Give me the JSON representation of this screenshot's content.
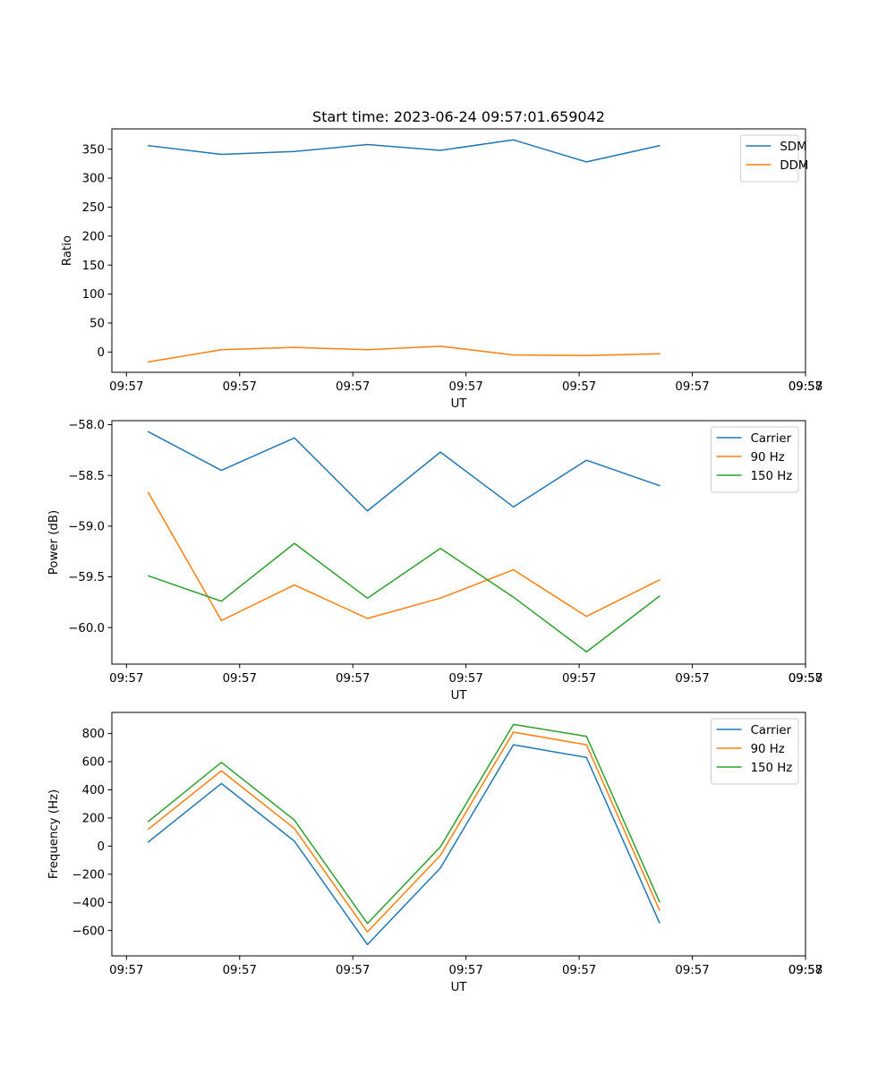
{
  "chart_data": [
    {
      "type": "line",
      "title": "Start time: 2023-06-24 09:57:01.659042",
      "xlabel": "UT",
      "ylabel": "Ratio",
      "x_tick_labels": [
        "09:57",
        "09:57",
        "09:57",
        "09:57",
        "09:57",
        "09:57",
        "09:57"
      ],
      "x_tick_end_label": "09:58",
      "xlim": [
        -0.5,
        9
      ],
      "x": [
        0,
        1,
        2,
        3,
        4,
        5,
        6,
        7
      ],
      "ylim": [
        -35,
        385
      ],
      "yticks": [
        0,
        50,
        100,
        150,
        200,
        250,
        300,
        350
      ],
      "series": [
        {
          "name": "SDM",
          "color": "#1f77b4",
          "values": [
            356,
            341,
            346,
            358,
            348,
            366,
            328,
            356
          ]
        },
        {
          "name": "DDM",
          "color": "#ff7f0e",
          "values": [
            -17,
            4,
            8,
            4,
            10,
            -5,
            -6,
            -3
          ]
        }
      ],
      "legend": "upper-right",
      "grid": false
    },
    {
      "type": "line",
      "title": "",
      "xlabel": "UT",
      "ylabel": "Power (dB)",
      "x_tick_labels": [
        "09:57",
        "09:57",
        "09:57",
        "09:57",
        "09:57",
        "09:57",
        "09:57"
      ],
      "x_tick_end_label": "09:58",
      "xlim": [
        -0.5,
        9
      ],
      "x": [
        0,
        1,
        2,
        3,
        4,
        5,
        6,
        7
      ],
      "ylim": [
        -60.36,
        -57.96
      ],
      "yticks": [
        -60.0,
        -59.5,
        -59.0,
        -58.5,
        -58.0
      ],
      "series": [
        {
          "name": "Carrier",
          "color": "#1f77b4",
          "values": [
            -58.07,
            -58.45,
            -58.13,
            -58.85,
            -58.27,
            -58.81,
            -58.35,
            -58.6
          ]
        },
        {
          "name": "90 Hz",
          "color": "#ff7f0e",
          "values": [
            -58.67,
            -59.93,
            -59.58,
            -59.91,
            -59.71,
            -59.43,
            -59.89,
            -59.53
          ]
        },
        {
          "name": "150 Hz",
          "color": "#2ca02c",
          "values": [
            -59.49,
            -59.74,
            -59.17,
            -59.71,
            -59.22,
            -59.7,
            -60.24,
            -59.69
          ]
        }
      ],
      "legend": "upper-right",
      "grid": false
    },
    {
      "type": "line",
      "title": "",
      "xlabel": "UT",
      "ylabel": "Frequency (Hz)",
      "x_tick_labels": [
        "09:57",
        "09:57",
        "09:57",
        "09:57",
        "09:57",
        "09:57",
        "09:57"
      ],
      "x_tick_end_label": "09:58",
      "xlim": [
        -0.5,
        9
      ],
      "x": [
        0,
        1,
        2,
        3,
        4,
        5,
        6,
        7
      ],
      "ylim": [
        -780,
        950
      ],
      "yticks": [
        -600,
        -400,
        -200,
        0,
        200,
        400,
        600,
        800
      ],
      "series": [
        {
          "name": "Carrier",
          "color": "#1f77b4",
          "values": [
            30,
            445,
            35,
            -700,
            -155,
            720,
            630,
            -545
          ]
        },
        {
          "name": "90 Hz",
          "color": "#ff7f0e",
          "values": [
            120,
            535,
            125,
            -610,
            -65,
            810,
            720,
            -455
          ]
        },
        {
          "name": "150 Hz",
          "color": "#2ca02c",
          "values": [
            175,
            595,
            185,
            -550,
            -5,
            865,
            780,
            -395
          ]
        }
      ],
      "legend": "upper-right",
      "grid": false
    }
  ]
}
